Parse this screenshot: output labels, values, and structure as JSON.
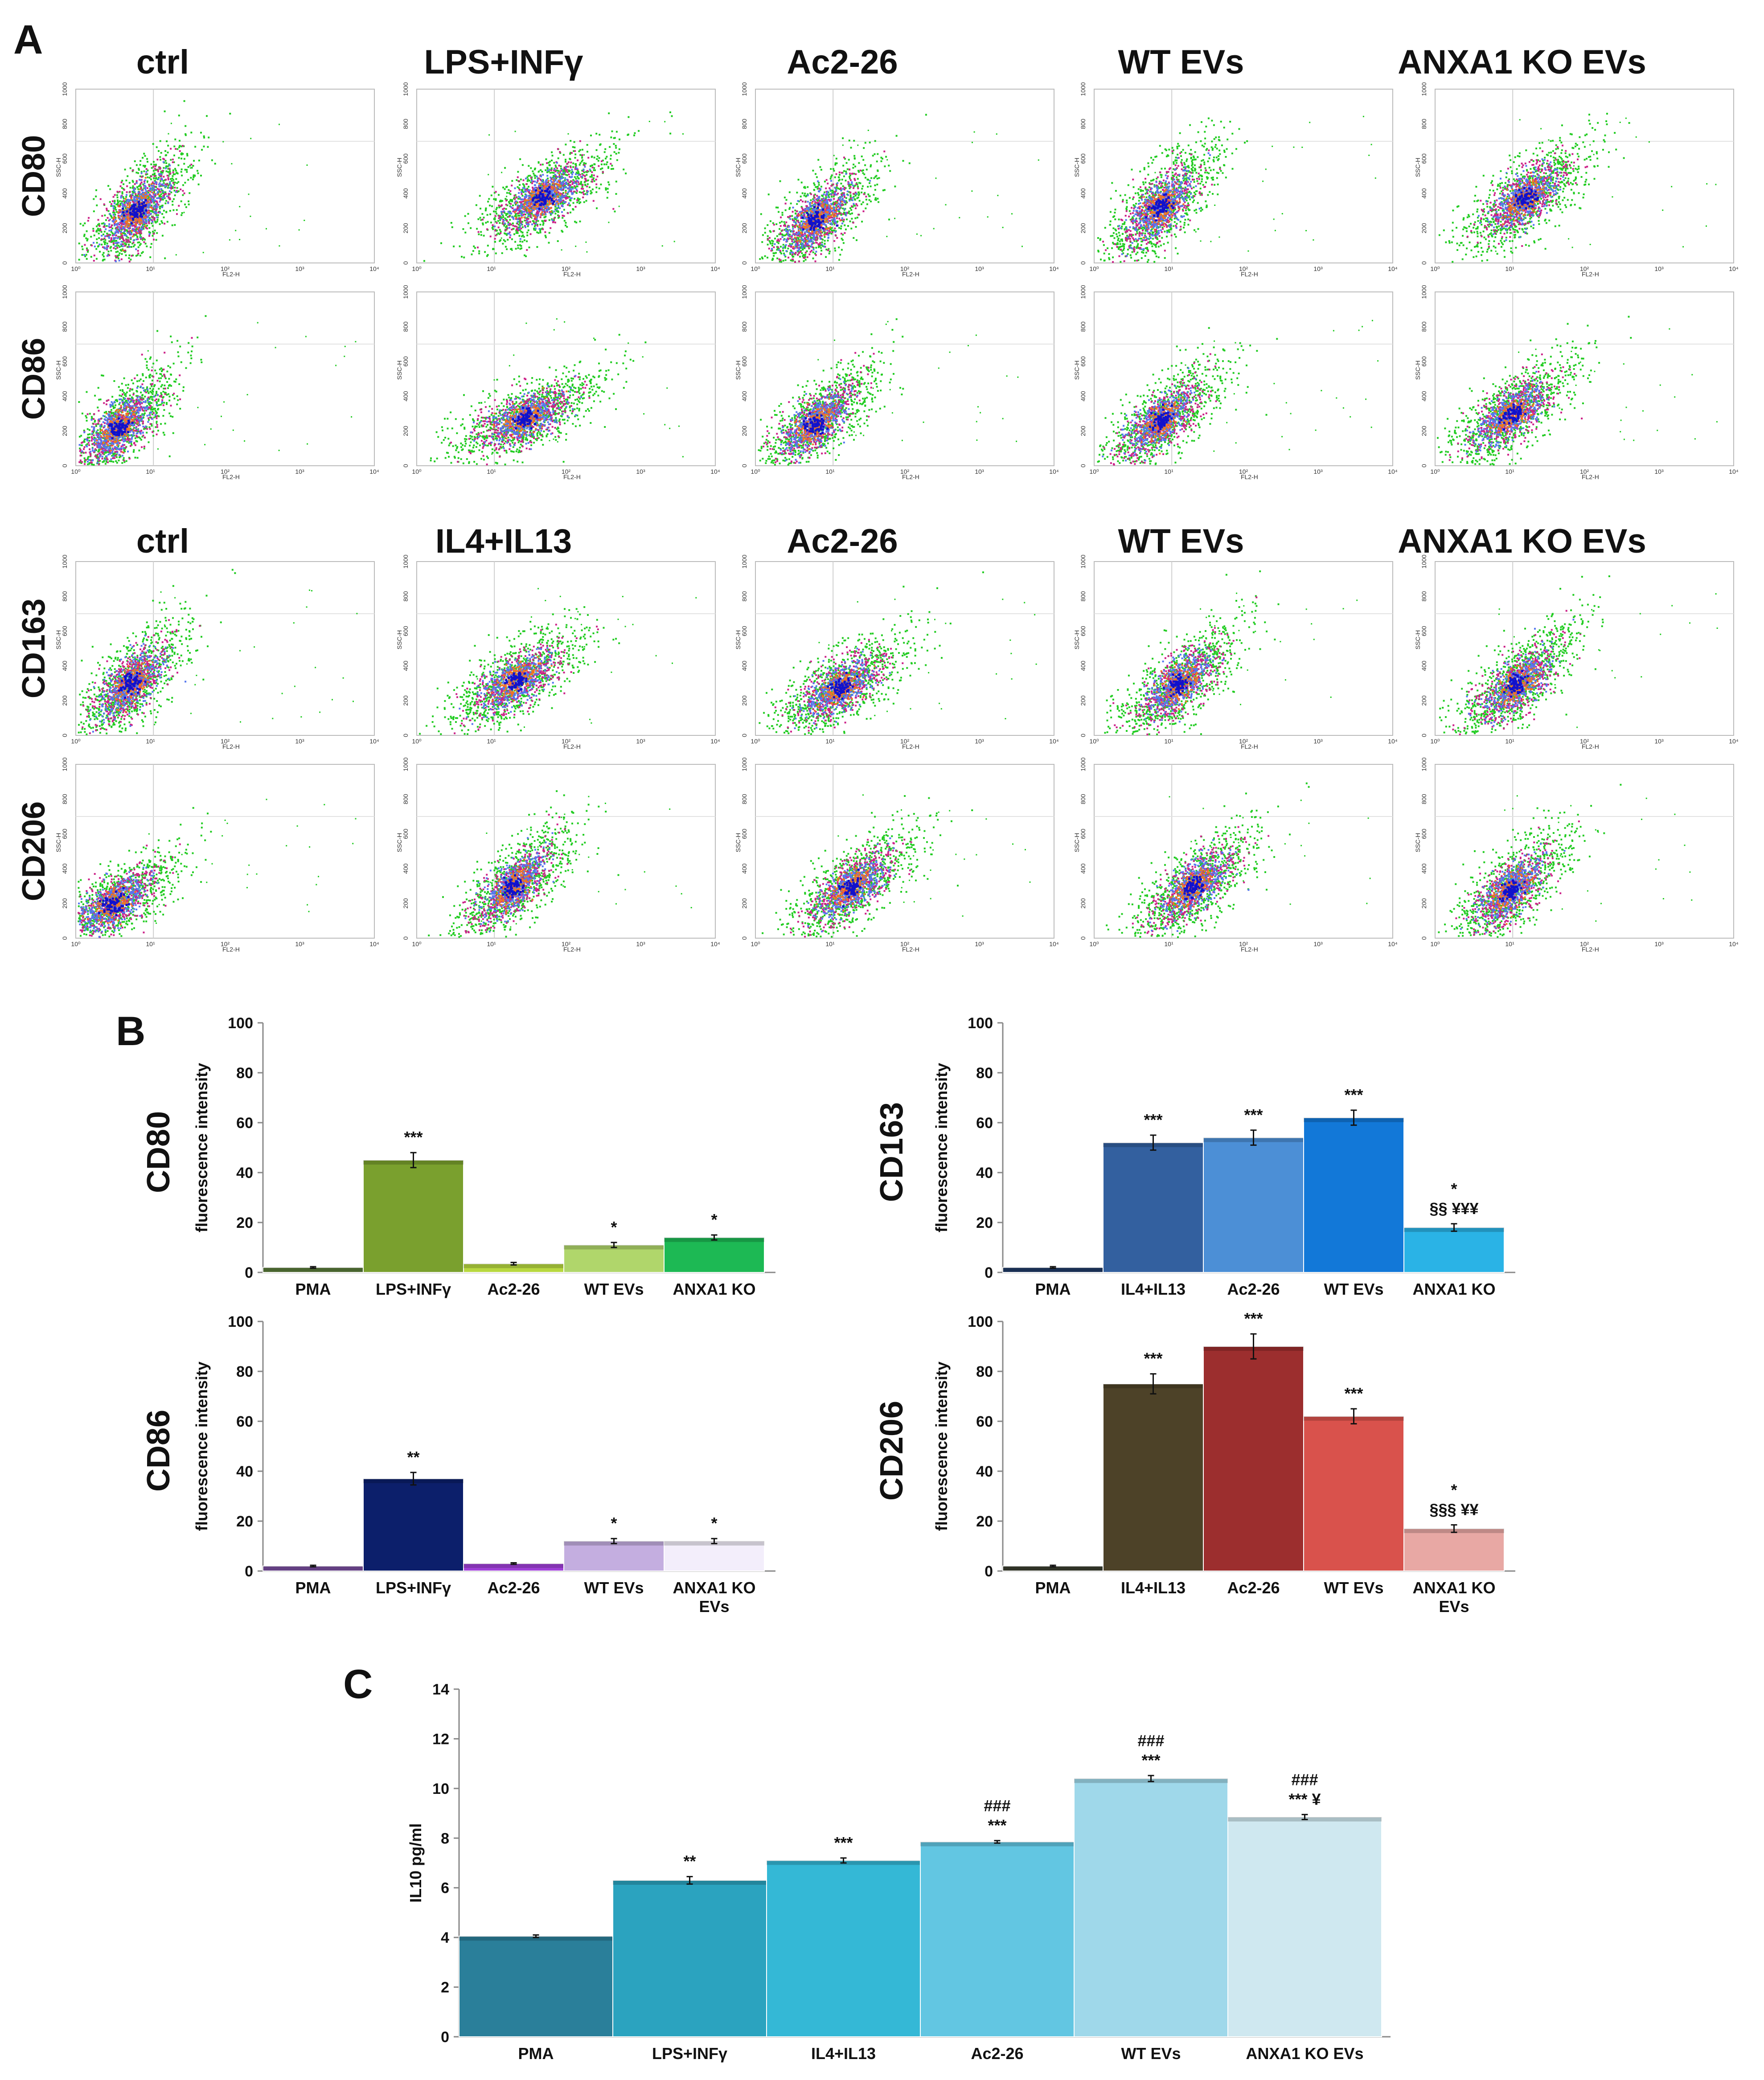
{
  "panels": {
    "A": "A",
    "B": "B",
    "C": "C"
  },
  "flow": {
    "top_titles": [
      "ctrl",
      "LPS+INFγ",
      "Ac2-26",
      "WT EVs",
      "ANXA1 KO EVs"
    ],
    "bottom_titles": [
      "ctrl",
      "IL4+IL13",
      "Ac2-26",
      "WT EVs",
      "ANXA1 KO EVs"
    ],
    "row_labels": [
      "CD80",
      "CD86",
      "CD163",
      "CD206"
    ],
    "x_axis_label": "FL2-H",
    "y_axis_label": "SSC-H",
    "x_ticks": [
      "10⁰",
      "10¹",
      "10²",
      "10³",
      "10⁴"
    ],
    "y_ticks": [
      "0",
      "200",
      "400",
      "600",
      "800",
      "1000"
    ],
    "colors": {
      "sparse": "#22cc22",
      "mid": "#cc2288",
      "dense": "#5577ee",
      "core": "#ee7722",
      "center": "#1111cc"
    }
  },
  "chart_data": [
    {
      "id": "cd80",
      "type": "bar",
      "label": "CD80",
      "ylabel": "fluorescence intensity",
      "ylim": [
        0,
        100
      ],
      "yticks": [
        "0",
        "20",
        "40",
        "60",
        "80",
        "100"
      ],
      "categories": [
        "PMA",
        "LPS+INFγ",
        "Ac2-26",
        "WT EVs",
        "ANXA1 KO"
      ],
      "values": [
        2,
        45,
        3.5,
        11,
        14
      ],
      "errors": [
        0.3,
        3,
        0.5,
        1,
        1
      ],
      "significance": [
        "",
        "***",
        "",
        "*",
        "*"
      ],
      "colors": [
        "#5a7a3a",
        "#7aa02e",
        "#b8d840",
        "#b0d66b",
        "#1db954"
      ]
    },
    {
      "id": "cd86",
      "type": "bar",
      "label": "CD86",
      "ylabel": "fluorescence intensity",
      "ylim": [
        0,
        100
      ],
      "yticks": [
        "0",
        "20",
        "40",
        "60",
        "80",
        "100"
      ],
      "categories": [
        "PMA",
        "LPS+INFγ",
        "Ac2-26",
        "WT EVs",
        "ANXA1 KO EVs"
      ],
      "values": [
        2,
        37,
        3,
        12,
        12
      ],
      "errors": [
        0.3,
        2.5,
        0.3,
        1,
        1
      ],
      "significance": [
        "",
        "**",
        "",
        "*",
        "*"
      ],
      "colors": [
        "#7a4fa0",
        "#0c1f6b",
        "#a040d8",
        "#c4aee0",
        "#f3eefb"
      ]
    },
    {
      "id": "cd163",
      "type": "bar",
      "label": "CD163",
      "ylabel": "fluorescence intensity",
      "ylim": [
        0,
        100
      ],
      "yticks": [
        "0",
        "20",
        "40",
        "60",
        "80",
        "100"
      ],
      "categories": [
        "PMA",
        "IL4+IL13",
        "Ac2-26",
        "WT EVs",
        "ANXA1 KO"
      ],
      "values": [
        2,
        52,
        54,
        62,
        18
      ],
      "errors": [
        0.3,
        3,
        3,
        3,
        1.5
      ],
      "significance": [
        "",
        "***",
        "***",
        "***",
        "*\n§§ ¥¥¥"
      ],
      "colors": [
        "#1f3a66",
        "#33609f",
        "#4c8fd6",
        "#1278d8",
        "#2ab3e6"
      ]
    },
    {
      "id": "cd206",
      "type": "bar",
      "label": "CD206",
      "ylabel": "fluorescence intensity",
      "ylim": [
        0,
        100
      ],
      "yticks": [
        "0",
        "20",
        "40",
        "60",
        "80",
        "100"
      ],
      "categories": [
        "PMA",
        "IL4+IL13",
        "Ac2-26",
        "WT EVs",
        "ANXA1 KO EVs"
      ],
      "values": [
        2,
        75,
        90,
        62,
        17
      ],
      "errors": [
        0.3,
        4,
        5,
        3,
        1.5
      ],
      "significance": [
        "",
        "***",
        "***",
        "***",
        "*\n§§§ ¥¥"
      ],
      "colors": [
        "#3b3f30",
        "#4d4228",
        "#9c2e2e",
        "#d9524c",
        "#e8a8a4"
      ]
    },
    {
      "id": "il10",
      "type": "bar",
      "label": "",
      "ylabel": "IL10 pg/ml",
      "ylim": [
        0,
        14
      ],
      "yticks": [
        "0",
        "2",
        "4",
        "6",
        "8",
        "10",
        "12",
        "14"
      ],
      "categories": [
        "PMA",
        "LPS+INFγ",
        "IL4+IL13",
        "Ac2-26",
        "WT EVs",
        "ANXA1 KO EVs"
      ],
      "values": [
        4.05,
        6.3,
        7.1,
        7.85,
        10.4,
        8.85
      ],
      "errors": [
        0.05,
        0.15,
        0.1,
        0.05,
        0.12,
        0.1
      ],
      "significance": [
        "",
        "**",
        "***",
        "###\n***",
        "###\n***",
        "###\n*** ¥"
      ],
      "colors": [
        "#2a7f9a",
        "#2ba3bf",
        "#34b8d6",
        "#62c6e2",
        "#9fd8ea",
        "#cfe8f0"
      ]
    }
  ]
}
